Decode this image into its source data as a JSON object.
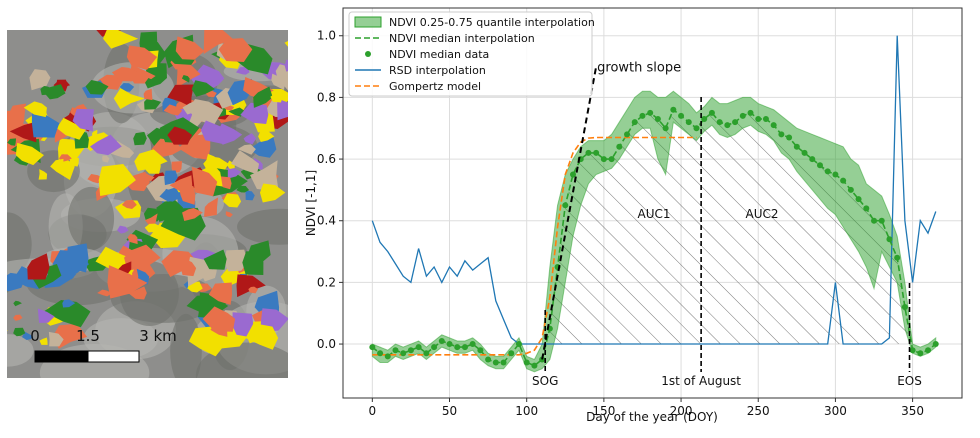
{
  "map": {
    "scale_labels": [
      "0",
      "1.5",
      "3 km"
    ]
  },
  "chart_data": {
    "type": "line",
    "xlabel": "Day of the year (DOY)",
    "ylabel": "NDVI [-1,1]",
    "xlim": [
      -19,
      382
    ],
    "ylim": [
      -0.175,
      1.09
    ],
    "xticks": [
      0,
      50,
      100,
      150,
      200,
      250,
      300,
      350
    ],
    "yticks": [
      {
        "value": 0,
        "label": "0.0"
      },
      {
        "value": 0.2,
        "label": "0.2"
      },
      {
        "value": 0.4,
        "label": "0.4"
      },
      {
        "value": 0.6,
        "label": "0.6"
      },
      {
        "value": 0.8,
        "label": "0.8"
      },
      {
        "value": 1,
        "label": "1.0"
      }
    ],
    "grid": true,
    "legend": "upper left",
    "x": [
      0,
      5,
      10,
      15,
      20,
      25,
      30,
      35,
      40,
      45,
      50,
      55,
      60,
      65,
      70,
      75,
      80,
      85,
      90,
      95,
      100,
      105,
      110,
      115,
      120,
      125,
      130,
      135,
      140,
      145,
      150,
      155,
      160,
      165,
      170,
      175,
      180,
      185,
      190,
      195,
      200,
      205,
      210,
      215,
      220,
      225,
      230,
      235,
      240,
      245,
      250,
      255,
      260,
      265,
      270,
      275,
      280,
      285,
      290,
      295,
      300,
      305,
      310,
      315,
      320,
      325,
      330,
      335,
      340,
      345,
      350,
      355,
      360,
      365
    ],
    "series": [
      {
        "name": "NDVI 0.25-0.75 quantile interpolation",
        "kind": "band",
        "color": "#2ca02c",
        "lower": [
          -0.04,
          -0.06,
          -0.06,
          -0.04,
          -0.05,
          -0.04,
          -0.03,
          -0.05,
          -0.03,
          -0.01,
          -0.02,
          -0.03,
          -0.03,
          -0.02,
          -0.05,
          -0.07,
          -0.08,
          -0.08,
          -0.05,
          -0.02,
          -0.08,
          -0.09,
          -0.08,
          -0.05,
          0.05,
          0.2,
          0.35,
          0.45,
          0.52,
          0.55,
          0.56,
          0.57,
          0.6,
          0.64,
          0.68,
          0.7,
          0.7,
          0.6,
          0.55,
          0.72,
          0.7,
          0.68,
          0.66,
          0.69,
          0.71,
          0.68,
          0.67,
          0.68,
          0.7,
          0.71,
          0.69,
          0.68,
          0.66,
          0.62,
          0.6,
          0.56,
          0.53,
          0.5,
          0.47,
          0.44,
          0.42,
          0.38,
          0.34,
          0.3,
          0.25,
          0.18,
          0.3,
          0.25,
          0.2,
          0.05,
          -0.03,
          -0.04,
          -0.03,
          -0.01
        ],
        "upper": [
          0.0,
          -0.01,
          -0.02,
          0.0,
          -0.01,
          0.0,
          0.01,
          -0.01,
          0.01,
          0.03,
          0.02,
          0.01,
          0.01,
          0.02,
          0.0,
          -0.03,
          -0.04,
          -0.04,
          -0.01,
          0.02,
          -0.04,
          -0.05,
          0.0,
          0.25,
          0.45,
          0.55,
          0.6,
          0.64,
          0.66,
          0.66,
          0.66,
          0.68,
          0.72,
          0.76,
          0.8,
          0.82,
          0.82,
          0.8,
          0.8,
          0.82,
          0.8,
          0.78,
          0.75,
          0.77,
          0.8,
          0.78,
          0.78,
          0.79,
          0.8,
          0.8,
          0.78,
          0.77,
          0.76,
          0.74,
          0.72,
          0.7,
          0.69,
          0.68,
          0.67,
          0.66,
          0.65,
          0.64,
          0.6,
          0.58,
          0.52,
          0.5,
          0.48,
          0.42,
          0.35,
          0.2,
          0.0,
          -0.01,
          0.0,
          0.02
        ]
      },
      {
        "name": "NDVI median interpolation",
        "kind": "dashed",
        "color": "#2ca02c",
        "values": [
          -0.01,
          -0.03,
          -0.04,
          -0.02,
          -0.03,
          -0.02,
          -0.01,
          -0.03,
          -0.01,
          0.01,
          0.0,
          -0.01,
          -0.01,
          0.0,
          -0.02,
          -0.05,
          -0.06,
          -0.06,
          -0.03,
          0.0,
          -0.06,
          -0.07,
          -0.05,
          0.05,
          0.25,
          0.45,
          0.55,
          0.6,
          0.62,
          0.62,
          0.6,
          0.6,
          0.64,
          0.68,
          0.72,
          0.74,
          0.75,
          0.73,
          0.7,
          0.76,
          0.74,
          0.72,
          0.7,
          0.73,
          0.75,
          0.72,
          0.71,
          0.72,
          0.74,
          0.75,
          0.73,
          0.73,
          0.71,
          0.68,
          0.67,
          0.64,
          0.62,
          0.6,
          0.58,
          0.56,
          0.55,
          0.53,
          0.5,
          0.47,
          0.44,
          0.4,
          0.4,
          0.34,
          0.28,
          0.12,
          -0.02,
          -0.03,
          -0.02,
          0.0
        ]
      },
      {
        "name": "NDVI median data",
        "kind": "points",
        "color": "#2ca02c",
        "values": [
          -0.01,
          -0.03,
          -0.04,
          -0.02,
          -0.03,
          -0.02,
          -0.01,
          -0.03,
          -0.01,
          0.01,
          0.0,
          -0.01,
          -0.01,
          0.0,
          -0.02,
          -0.05,
          -0.06,
          -0.06,
          -0.03,
          0.0,
          -0.06,
          -0.07,
          -0.05,
          0.05,
          0.25,
          0.45,
          0.55,
          0.6,
          0.62,
          0.62,
          0.6,
          0.6,
          0.64,
          0.68,
          0.72,
          0.74,
          0.75,
          0.73,
          0.7,
          0.76,
          0.74,
          0.72,
          0.7,
          0.73,
          0.75,
          0.72,
          0.71,
          0.72,
          0.74,
          0.75,
          0.73,
          0.73,
          0.71,
          0.68,
          0.67,
          0.64,
          0.62,
          0.6,
          0.58,
          0.56,
          0.55,
          0.53,
          0.5,
          0.47,
          0.44,
          0.4,
          0.4,
          0.34,
          0.28,
          0.12,
          -0.02,
          -0.03,
          -0.02,
          0.0
        ]
      },
      {
        "name": "RSD interpolation",
        "kind": "solid",
        "color": "#1f77b4",
        "values": [
          0.4,
          0.33,
          0.3,
          0.26,
          0.22,
          0.2,
          0.31,
          0.22,
          0.25,
          0.2,
          0.25,
          0.22,
          0.27,
          0.24,
          0.26,
          0.28,
          0.14,
          0.08,
          0.02,
          0.0,
          0,
          0,
          0,
          0,
          0,
          0,
          0,
          0,
          0,
          0,
          0,
          0,
          0,
          0,
          0,
          0,
          0,
          0,
          0,
          0,
          0,
          0,
          0,
          0,
          0,
          0,
          0,
          0,
          0,
          0,
          0,
          0,
          0,
          0,
          0,
          0,
          0,
          0,
          0,
          0,
          0.2,
          0.0,
          0,
          0,
          0,
          0,
          0,
          0.02,
          1.0,
          0.4,
          0.2,
          0.4,
          0.36,
          0.43
        ]
      },
      {
        "name": "Gompertz model",
        "kind": "dashed",
        "color": "#ff7f0e",
        "values": [
          -0.035,
          -0.035,
          -0.035,
          -0.035,
          -0.035,
          -0.035,
          -0.035,
          -0.035,
          -0.035,
          -0.035,
          -0.035,
          -0.035,
          -0.035,
          -0.035,
          -0.035,
          -0.035,
          -0.035,
          -0.035,
          -0.035,
          -0.035,
          -0.03,
          -0.02,
          0.02,
          0.15,
          0.38,
          0.55,
          0.62,
          0.655,
          0.668,
          0.67,
          0.67,
          0.67,
          0.67,
          0.67,
          0.67,
          0.67,
          0.67,
          0.67,
          0.67,
          0.67,
          0.67,
          0.67,
          0.67,
          null,
          null,
          null,
          null,
          null,
          null,
          null,
          null,
          null,
          null,
          null,
          null,
          null,
          null,
          null,
          null,
          null,
          null,
          null,
          null,
          null,
          null,
          null,
          null,
          null,
          null,
          null,
          null,
          null,
          null,
          null
        ]
      }
    ],
    "slope": {
      "label": "growth slope",
      "x": [
        110,
        145
      ],
      "y": [
        -0.05,
        0.9
      ]
    },
    "markers": [
      {
        "label": "SOG",
        "x": 112
      },
      {
        "label": "1st of August",
        "x": 213
      },
      {
        "label": "EOS",
        "x": 348
      }
    ],
    "areas": [
      "AUC1",
      "AUC2"
    ]
  }
}
